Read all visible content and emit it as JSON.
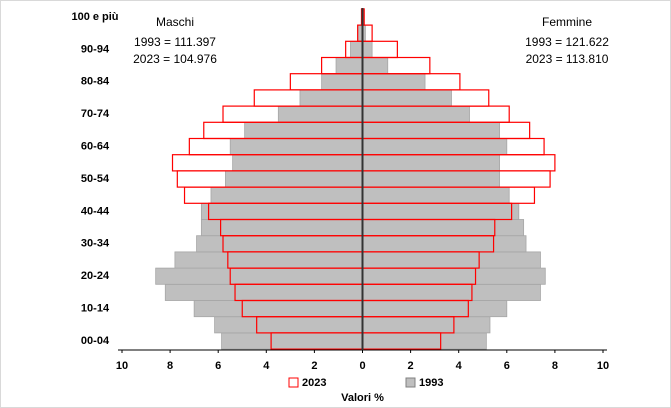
{
  "chart_data": {
    "type": "pyramid",
    "categories": [
      "00-04",
      null,
      "10-14",
      null,
      "20-24",
      null,
      "30-34",
      null,
      "40-44",
      null,
      "50-54",
      null,
      "60-64",
      null,
      "70-74",
      null,
      "80-84",
      null,
      "90-94",
      null,
      "100 e più"
    ],
    "left": {
      "label": "Maschi",
      "totals": [
        "1993 = 111.397",
        "2023 = 104.976"
      ]
    },
    "right": {
      "label": "Femmine",
      "totals": [
        "1993 = 121.622",
        "2023 = 113.810"
      ]
    },
    "series": [
      {
        "name": "2023",
        "color": "#ff0000",
        "left_values": [
          3.8,
          4.4,
          5.0,
          5.3,
          5.5,
          5.6,
          5.8,
          5.9,
          6.4,
          7.4,
          7.7,
          7.9,
          7.2,
          6.6,
          5.8,
          4.5,
          3.0,
          1.7,
          0.7,
          0.2,
          0.04
        ],
        "right_values": [
          3.25,
          3.8,
          4.4,
          4.55,
          4.7,
          4.85,
          5.45,
          5.5,
          6.2,
          7.15,
          7.8,
          8.0,
          7.55,
          6.95,
          6.1,
          5.25,
          4.05,
          2.8,
          1.45,
          0.4,
          0.07
        ]
      },
      {
        "name": "1993",
        "color": "#bfbfbf",
        "left_values": [
          5.86,
          6.15,
          7.0,
          8.2,
          8.6,
          7.8,
          6.9,
          6.7,
          6.7,
          6.3,
          5.7,
          5.4,
          5.5,
          4.9,
          3.5,
          2.6,
          1.7,
          1.1,
          0.5,
          0.2,
          0.05
        ],
        "right_values": [
          5.15,
          5.3,
          6.0,
          7.4,
          7.6,
          7.4,
          6.8,
          6.7,
          6.5,
          6.1,
          5.7,
          5.7,
          6.0,
          5.7,
          4.45,
          3.7,
          2.6,
          1.05,
          0.4,
          0.12,
          0.03
        ]
      }
    ],
    "xlabel": "Valori %",
    "xlim": [
      -10,
      10
    ],
    "xticks": [
      {
        "value": -10,
        "label": "10"
      },
      {
        "value": -8,
        "label": "8"
      },
      {
        "value": -6,
        "label": "6"
      },
      {
        "value": -4,
        "label": "4"
      },
      {
        "value": -2,
        "label": "2"
      },
      0,
      2,
      4,
      6,
      8,
      10
    ]
  }
}
